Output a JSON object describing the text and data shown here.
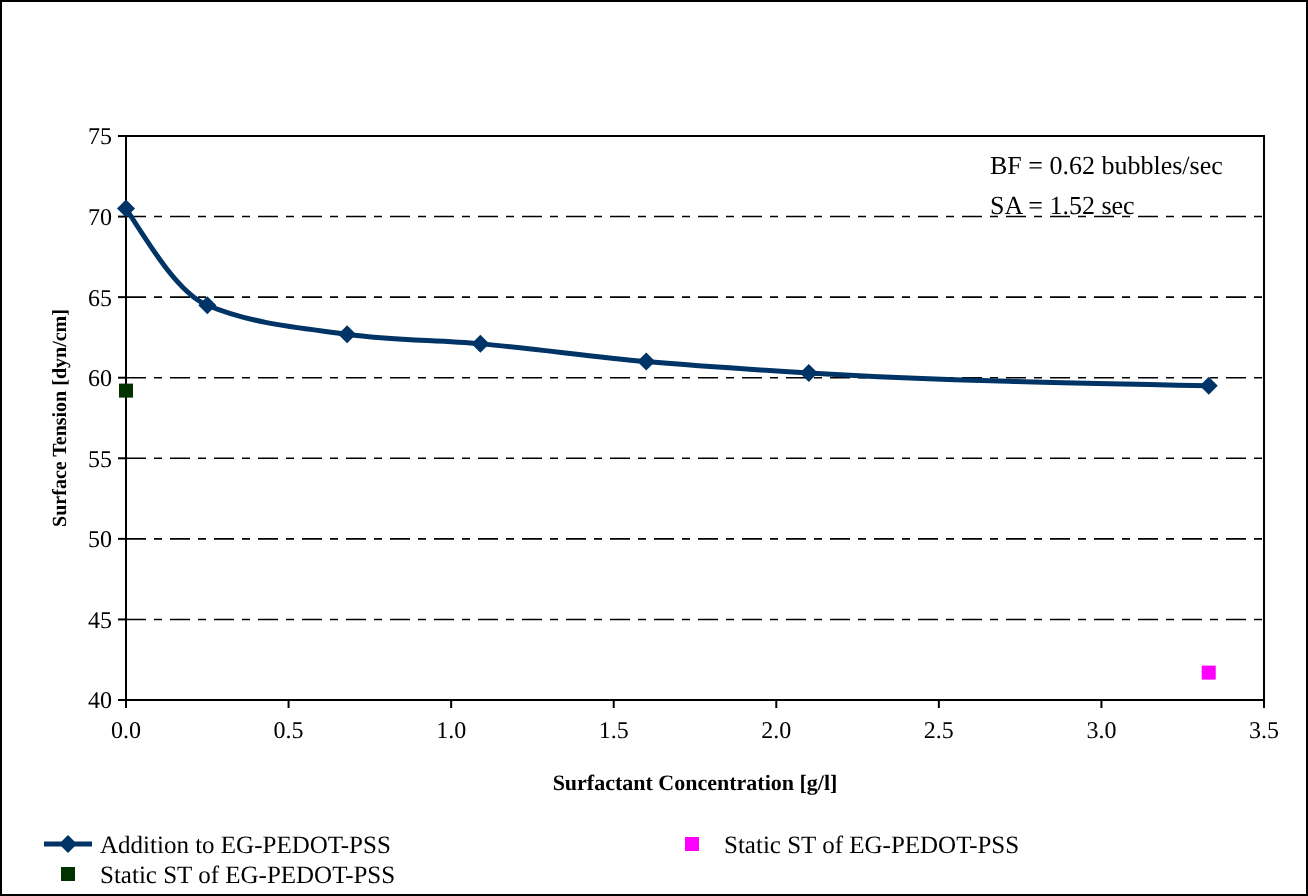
{
  "chart_data": {
    "type": "line",
    "xlabel": "Surfactant Concentration [g/l]",
    "ylabel": "Surface Tension [dyn/cm]",
    "xlim": [
      0,
      3.5
    ],
    "xticks": [
      {
        "value": 0,
        "label": "0.0"
      },
      {
        "value": 0.5,
        "label": "0.5"
      },
      {
        "value": 1,
        "label": "1.0"
      },
      {
        "value": 1.5,
        "label": "1.5"
      },
      {
        "value": 2,
        "label": "2.0"
      },
      {
        "value": 2.5,
        "label": "2.5"
      },
      {
        "value": 3,
        "label": "3.0"
      },
      {
        "value": 3.5,
        "label": "3.5"
      }
    ],
    "ylim": [
      40,
      75
    ],
    "yticks": [
      40,
      45,
      50,
      55,
      60,
      65,
      70,
      75
    ],
    "grid": "y",
    "legend": "bottom",
    "annotations": [
      "BF = 0.62 bubbles/sec",
      "SA = 1.52 sec"
    ],
    "series": [
      {
        "name": "Addition to EG-PEDOT-PSS",
        "color": "#003366",
        "marker": "diamond",
        "x": [
          0,
          0.25,
          0.68,
          1.09,
          1.6,
          2.1,
          3.33
        ],
        "values": [
          70.5,
          64.5,
          62.7,
          62.1,
          61.0,
          60.3,
          59.5
        ]
      },
      {
        "name": "Static ST of EG-PEDOT-PSS",
        "type": "scatter",
        "color": "#ff00ff",
        "marker": "square",
        "x": [
          3.33
        ],
        "values": [
          41.7
        ]
      },
      {
        "name": "Static ST of EG-PEDOT-PSS",
        "type": "scatter",
        "color": "#003300",
        "marker": "square",
        "x": [
          0
        ],
        "values": [
          59.2
        ]
      }
    ]
  }
}
